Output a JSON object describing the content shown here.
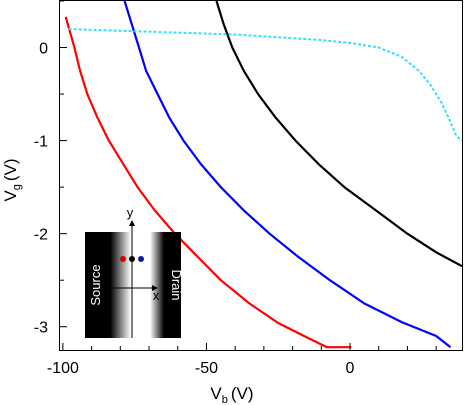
{
  "chart_data": {
    "type": "line",
    "xlim": [
      -101,
      39
    ],
    "ylim": [
      -3.25,
      0.5
    ],
    "x_ticks": [
      -100,
      -50,
      0
    ],
    "x_tick_labels": [
      "-100",
      "-50",
      "0"
    ],
    "y_ticks": [
      0,
      -1,
      -2,
      -3
    ],
    "y_tick_labels": [
      "0",
      "-1",
      "-2",
      "-3"
    ],
    "xlabel_main": "V",
    "xlabel_sub": "b",
    "xlabel_unit": "(V)",
    "ylabel_main": "V",
    "ylabel_sub": "g",
    "ylabel_unit": "(V)",
    "grid": false,
    "series": [
      {
        "color": "#ff0000",
        "style": "solid",
        "points": [
          [
            -99.0,
            0.33
          ],
          [
            -96.0,
            0.0
          ],
          [
            -94.0,
            -0.25
          ],
          [
            -91.5,
            -0.5
          ],
          [
            -88.0,
            -0.75
          ],
          [
            -84.0,
            -1.0
          ],
          [
            -79.0,
            -1.25
          ],
          [
            -74.0,
            -1.5
          ],
          [
            -68.0,
            -1.75
          ],
          [
            -61.0,
            -2.0
          ],
          [
            -53.0,
            -2.25
          ],
          [
            -45.0,
            -2.5
          ],
          [
            -35.0,
            -2.75
          ],
          [
            -25.0,
            -2.96
          ],
          [
            -16.0,
            -3.1
          ],
          [
            -8.0,
            -3.22
          ],
          [
            0.5,
            -3.22
          ]
        ]
      },
      {
        "color": "#0000ff",
        "style": "solid",
        "points": [
          [
            -78.5,
            0.5
          ],
          [
            -76.0,
            0.25
          ],
          [
            -73.5,
            0.0
          ],
          [
            -71.0,
            -0.25
          ],
          [
            -67.0,
            -0.5
          ],
          [
            -63.0,
            -0.75
          ],
          [
            -58.0,
            -1.0
          ],
          [
            -52.0,
            -1.25
          ],
          [
            -45.0,
            -1.5
          ],
          [
            -37.0,
            -1.75
          ],
          [
            -28.0,
            -2.0
          ],
          [
            -18.0,
            -2.25
          ],
          [
            -7.0,
            -2.5
          ],
          [
            5.0,
            -2.75
          ],
          [
            18.0,
            -2.95
          ],
          [
            30.0,
            -3.1
          ],
          [
            35.0,
            -3.22
          ]
        ]
      },
      {
        "color": "#000000",
        "style": "solid",
        "points": [
          [
            -46.5,
            0.5
          ],
          [
            -44.0,
            0.25
          ],
          [
            -41.0,
            0.0
          ],
          [
            -37.0,
            -0.25
          ],
          [
            -32.0,
            -0.5
          ],
          [
            -26.0,
            -0.75
          ],
          [
            -19.0,
            -1.0
          ],
          [
            -11.0,
            -1.25
          ],
          [
            -2.0,
            -1.5
          ],
          [
            9.0,
            -1.75
          ],
          [
            20.0,
            -2.0
          ],
          [
            30.0,
            -2.2
          ],
          [
            39.0,
            -2.35
          ]
        ]
      },
      {
        "color": "#33e0ff",
        "style": "dotted",
        "points": [
          [
            -98.0,
            0.2
          ],
          [
            -90.0,
            0.19
          ],
          [
            -80.0,
            0.18
          ],
          [
            -70.0,
            0.17
          ],
          [
            -60.0,
            0.16
          ],
          [
            -50.0,
            0.15
          ],
          [
            -40.0,
            0.14
          ],
          [
            -30.0,
            0.12
          ],
          [
            -20.0,
            0.1
          ],
          [
            -10.0,
            0.08
          ],
          [
            0.0,
            0.05
          ],
          [
            10.0,
            0.0
          ],
          [
            18.0,
            -0.1
          ],
          [
            24.0,
            -0.25
          ],
          [
            28.0,
            -0.4
          ],
          [
            32.0,
            -0.6
          ],
          [
            35.0,
            -0.8
          ],
          [
            37.0,
            -0.95
          ],
          [
            39.0,
            -1.0
          ]
        ]
      }
    ]
  },
  "inset": {
    "source_label": "Source",
    "drain_label": "Drain",
    "x_axis_label": "x",
    "y_axis_label": "y",
    "dot_colors": [
      "#d40000",
      "#000000",
      "#00209f"
    ]
  }
}
